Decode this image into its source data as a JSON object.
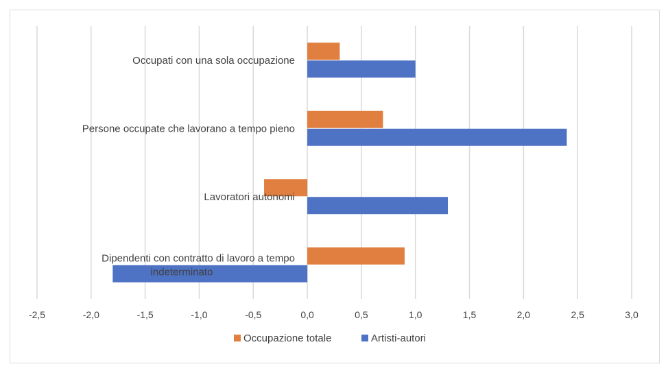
{
  "chart_data": {
    "type": "bar",
    "orientation": "horizontal",
    "categories": [
      "Occupati con una sola occupazione",
      "Persone occupate che lavorano a tempo pieno",
      "Lavoratori autonomi",
      "Dipendenti con contratto di lavoro a tempo indeterminato"
    ],
    "category_label_lines": [
      [
        "Occupati con una sola occupazione"
      ],
      [
        "Persone occupate che lavorano a tempo pieno"
      ],
      [
        "Lavoratori autonomi"
      ],
      [
        "Dipendenti con contratto di lavoro a tempo",
        "indeterminato"
      ]
    ],
    "series": [
      {
        "name": "Occupazione totale",
        "color": "#E07F3F",
        "values": [
          0.3,
          0.7,
          -0.4,
          0.9
        ]
      },
      {
        "name": "Artisti-autori",
        "color": "#4E72C4",
        "values": [
          1.0,
          2.4,
          1.3,
          -1.8
        ]
      }
    ],
    "xlim": [
      -2.5,
      3.0
    ],
    "x_ticks": [
      -2.5,
      -2.0,
      -1.5,
      -1.0,
      -0.5,
      0.0,
      0.5,
      1.0,
      1.5,
      2.0,
      2.5,
      3.0
    ],
    "x_tick_labels": [
      "-2,5",
      "-2,0",
      "-1,5",
      "-1,0",
      "-0,5",
      "0,0",
      "0,5",
      "1,0",
      "1,5",
      "2,0",
      "2,5",
      "3,0"
    ],
    "title": "",
    "xlabel": "",
    "ylabel": "",
    "grid": "vertical",
    "legend_position": "bottom",
    "gridline_color": "#d9d9d9"
  }
}
